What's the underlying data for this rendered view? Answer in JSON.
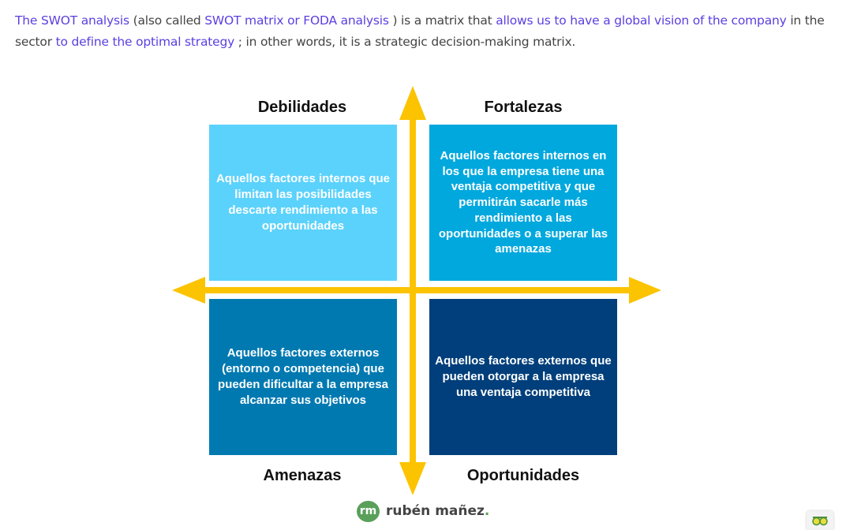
{
  "intro": {
    "p1": "The SWOT analysis",
    "p2": " (also called ",
    "p3": "SWOT matrix or FODA analysis",
    "p4": " ) is a matrix that ",
    "p5": "allows us to have a global vision of the company",
    "p6": " in the sector ",
    "p7": "to",
    "p8": " ",
    "p9": "define the optimal strategy",
    "p10": " ; in other words, it is a strategic decision-making matrix."
  },
  "matrix": {
    "headings": {
      "top_left": "Debilidades",
      "top_right": "Fortalezas",
      "bottom_left": "Amenazas",
      "bottom_right": "Oportunidades"
    },
    "quadrants": {
      "top_left": "Aquellos factores internos que limitan las posibilidades descarte rendimiento a las oportunidades",
      "top_right": "Aquellos factores internos en los que la empresa tiene una ventaja competitiva y que permitirán sacarle más rendimiento a las oportunidades o a superar las amenazas",
      "bottom_left": "Aquellos factores externos (entorno o competencia) que pueden dificultar a la empresa alcanzar sus objetivos",
      "bottom_right": "Aquellos factores externos que pueden otorgar a la empresa una ventaja competitiva"
    },
    "colors": {
      "top_left": "#5bd2fc",
      "top_right": "#00a8de",
      "bottom_left": "#0079b1",
      "bottom_right": "#003f7b",
      "arrows": "#fbc300"
    }
  },
  "logo": {
    "mark": "rm",
    "name": "rubén mañez",
    "dot": "."
  },
  "corner_icon": "eye-glasses-icon"
}
